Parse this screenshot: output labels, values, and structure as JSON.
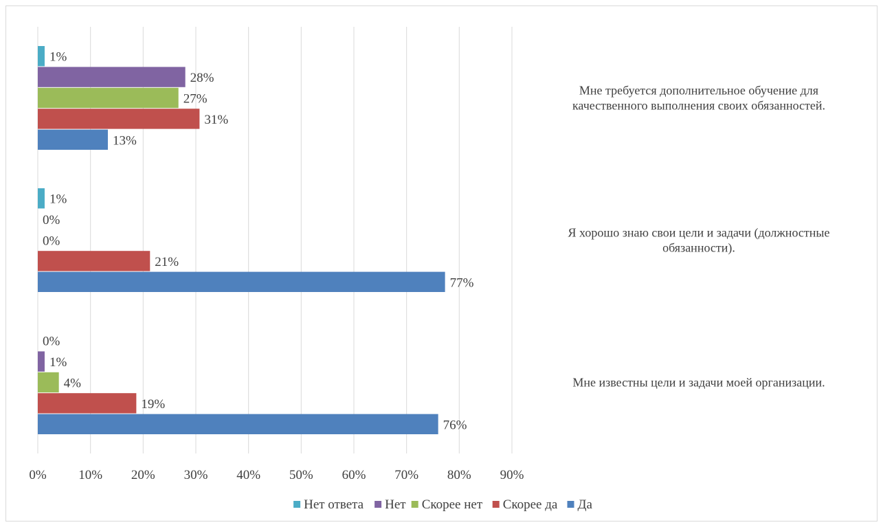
{
  "chart_data": {
    "type": "bar",
    "orientation": "horizontal",
    "title": "",
    "xlabel": "",
    "ylabel": "",
    "xlim": [
      0,
      90
    ],
    "x_ticks": [
      "0%",
      "10%",
      "20%",
      "30%",
      "40%",
      "50%",
      "60%",
      "70%",
      "80%",
      "90%"
    ],
    "grid": true,
    "legend_position": "bottom",
    "categories": [
      "Мне требуется дополнительное обучение для качественного выполнения своих обязанностей.",
      "Я хорошо знаю свои цели и задачи (должностные обязанности).",
      "Мне известны цели и задачи моей организации."
    ],
    "category_lines": [
      [
        "Мне требуется дополнительное обучение для",
        "качественного выполнения своих обязанностей."
      ],
      [
        "Я хорошо знаю свои цели и задачи (должностные",
        "обязанности)."
      ],
      [
        "Мне известны цели и задачи моей организации."
      ]
    ],
    "series": [
      {
        "name": "Нет ответа",
        "color": "#4bacc6",
        "values": [
          1.3,
          1.3,
          0
        ],
        "labels": [
          "1%",
          "1%",
          "0%"
        ]
      },
      {
        "name": "Нет",
        "color": "#8064a2",
        "values": [
          28,
          0,
          1.3
        ],
        "labels": [
          "28%",
          "0%",
          "1%"
        ]
      },
      {
        "name": "Скорее нет",
        "color": "#9bbb59",
        "values": [
          26.7,
          0,
          4
        ],
        "labels": [
          "27%",
          "0%",
          "4%"
        ]
      },
      {
        "name": "Скорее да",
        "color": "#c0504d",
        "values": [
          30.7,
          21.3,
          18.7
        ],
        "labels": [
          "31%",
          "21%",
          "19%"
        ]
      },
      {
        "name": "Да",
        "color": "#4f81bd",
        "values": [
          13.3,
          77.3,
          76
        ],
        "labels": [
          "13%",
          "77%",
          "76%"
        ]
      }
    ],
    "legend": [
      {
        "name": "Нет ответа",
        "color": "#4bacc6"
      },
      {
        "name": "Нет",
        "color": "#8064a2"
      },
      {
        "name": "Скорее нет",
        "color": "#9bbb59"
      },
      {
        "name": "Скорее да",
        "color": "#c0504d"
      },
      {
        "name": "Да",
        "color": "#4f81bd"
      }
    ],
    "gridline_color": "#d9d9d9",
    "text_color": "#404040"
  }
}
